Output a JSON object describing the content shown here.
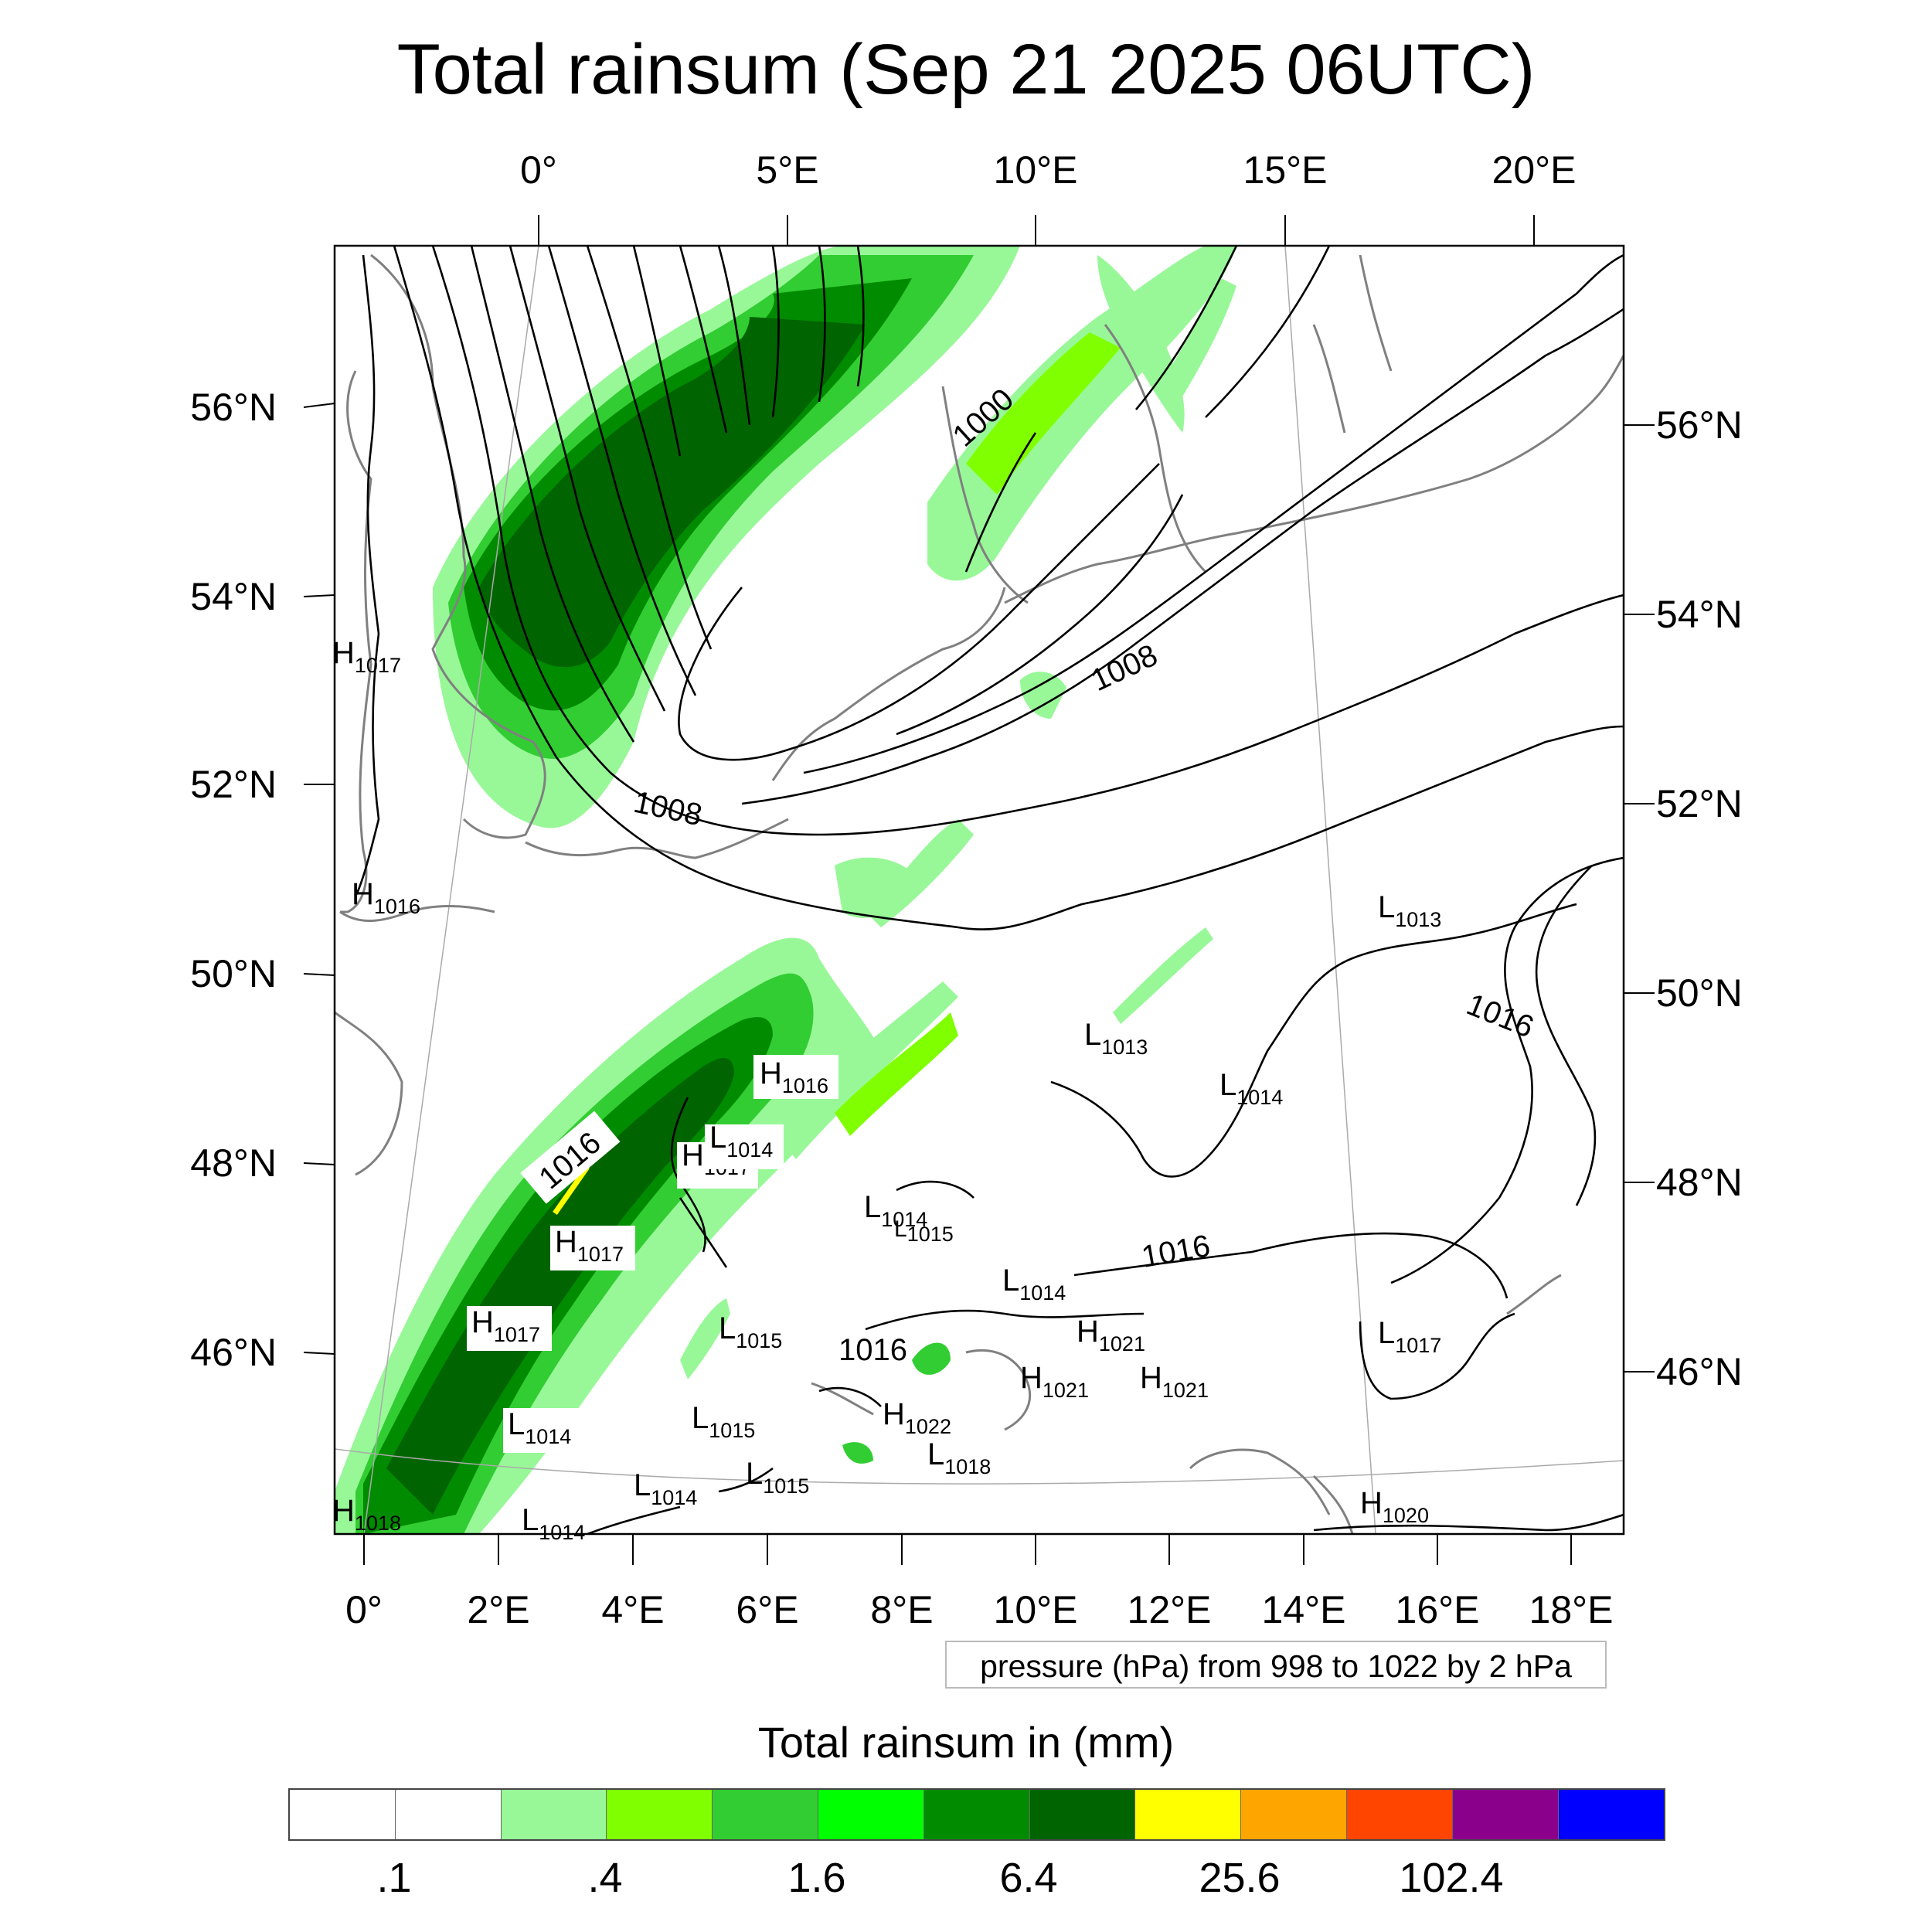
{
  "title": "Total rainsum (Sep 21 2025 06UTC)",
  "axes": {
    "top_lon_ticks": [
      "0°",
      "5°E",
      "10°E",
      "15°E",
      "20°E"
    ],
    "bottom_lon_ticks": [
      "0°",
      "2°E",
      "4°E",
      "6°E",
      "8°E",
      "10°E",
      "12°E",
      "14°E",
      "16°E",
      "18°E"
    ],
    "left_lat_ticks": [
      "56°N",
      "54°N",
      "52°N",
      "50°N",
      "48°N",
      "46°N"
    ],
    "right_lat_ticks": [
      "56°N",
      "54°N",
      "52°N",
      "50°N",
      "48°N",
      "46°N"
    ]
  },
  "contour_labels": [
    "1000",
    "1008",
    "1008",
    "1016",
    "1016",
    "1016",
    "1016"
  ],
  "pressure_centers": [
    {
      "type": "H",
      "value": "1017"
    },
    {
      "type": "H",
      "value": "1016"
    },
    {
      "type": "H",
      "value": "1018"
    },
    {
      "type": "H",
      "value": "1016"
    },
    {
      "type": "H",
      "value": "1017"
    },
    {
      "type": "H",
      "value": "1017"
    },
    {
      "type": "H",
      "value": "1017"
    },
    {
      "type": "H",
      "value": "1021"
    },
    {
      "type": "H",
      "value": "1021"
    },
    {
      "type": "H",
      "value": "1021"
    },
    {
      "type": "H",
      "value": "1022"
    },
    {
      "type": "H",
      "value": "1020"
    },
    {
      "type": "L",
      "value": "1014"
    },
    {
      "type": "L",
      "value": "1014"
    },
    {
      "type": "L",
      "value": "1015"
    },
    {
      "type": "L",
      "value": "1015"
    },
    {
      "type": "L",
      "value": "1014"
    },
    {
      "type": "L",
      "value": "1015"
    },
    {
      "type": "L",
      "value": "1014"
    },
    {
      "type": "L",
      "value": "1014"
    },
    {
      "type": "L",
      "value": "1013"
    },
    {
      "type": "L",
      "value": "1014"
    },
    {
      "type": "L",
      "value": "1013"
    },
    {
      "type": "L",
      "value": "1017"
    },
    {
      "type": "L",
      "value": "1018"
    },
    {
      "type": "L",
      "value": "1015"
    },
    {
      "type": "L",
      "value": "1014"
    }
  ],
  "contour_info": "pressure (hPa) from 998 to 1022 by 2 hPa",
  "colorbar": {
    "title": "Total rainsum in (mm)",
    "colors": [
      "#ffffff",
      "#ffffff",
      "#98f898",
      "#80ff00",
      "#32cd32",
      "#00ff00",
      "#008b00",
      "#006400",
      "#ffff00",
      "#ffa500",
      "#ff4500",
      "#8b008b",
      "#0000ff"
    ],
    "labels": [
      ".1",
      ".4",
      "1.6",
      "6.4",
      "25.6",
      "102.4"
    ]
  }
}
